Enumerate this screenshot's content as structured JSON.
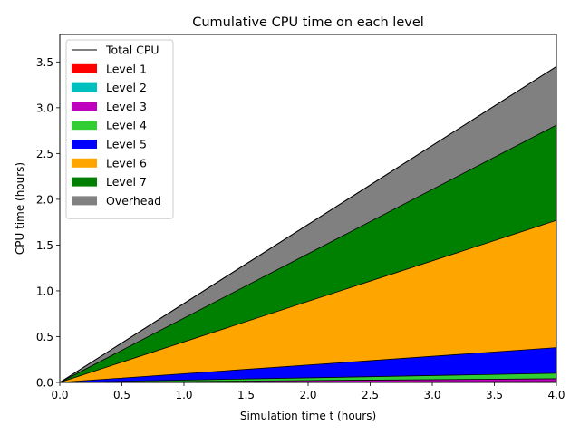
{
  "chart_data": {
    "type": "area",
    "title": "Cumulative CPU time on each level",
    "xlabel": "Simulation time t (hours)",
    "ylabel": "CPU time (hours)",
    "xlim": [
      0.0,
      4.0
    ],
    "ylim": [
      0.0,
      3.8
    ],
    "xticks": [
      "0.0",
      "0.5",
      "1.0",
      "1.5",
      "2.0",
      "2.5",
      "3.0",
      "3.5",
      "4.0"
    ],
    "yticks": [
      "0.0",
      "0.5",
      "1.0",
      "1.5",
      "2.0",
      "2.5",
      "3.0",
      "3.5"
    ],
    "grid": false,
    "legend_position": "top-left",
    "x": [
      0.0,
      4.0
    ],
    "series": [
      {
        "name": "Level 1",
        "color": "#ff0000",
        "values": [
          0.0,
          0.005
        ]
      },
      {
        "name": "Level 2",
        "color": "#00bfbf",
        "values": [
          0.0,
          0.005
        ]
      },
      {
        "name": "Level 3",
        "color": "#bf00bf",
        "values": [
          0.0,
          0.03
        ]
      },
      {
        "name": "Level 4",
        "color": "#32cd32",
        "values": [
          0.0,
          0.06
        ]
      },
      {
        "name": "Level 5",
        "color": "#0000ff",
        "values": [
          0.0,
          0.28
        ]
      },
      {
        "name": "Level 6",
        "color": "#ffa500",
        "values": [
          0.0,
          1.39
        ]
      },
      {
        "name": "Level 7",
        "color": "#008000",
        "values": [
          0.0,
          1.04
        ]
      },
      {
        "name": "Overhead",
        "color": "#808080",
        "values": [
          0.0,
          0.64
        ]
      }
    ],
    "total": {
      "name": "Total CPU",
      "color": "#000000",
      "values": [
        0.0,
        3.45
      ]
    }
  }
}
